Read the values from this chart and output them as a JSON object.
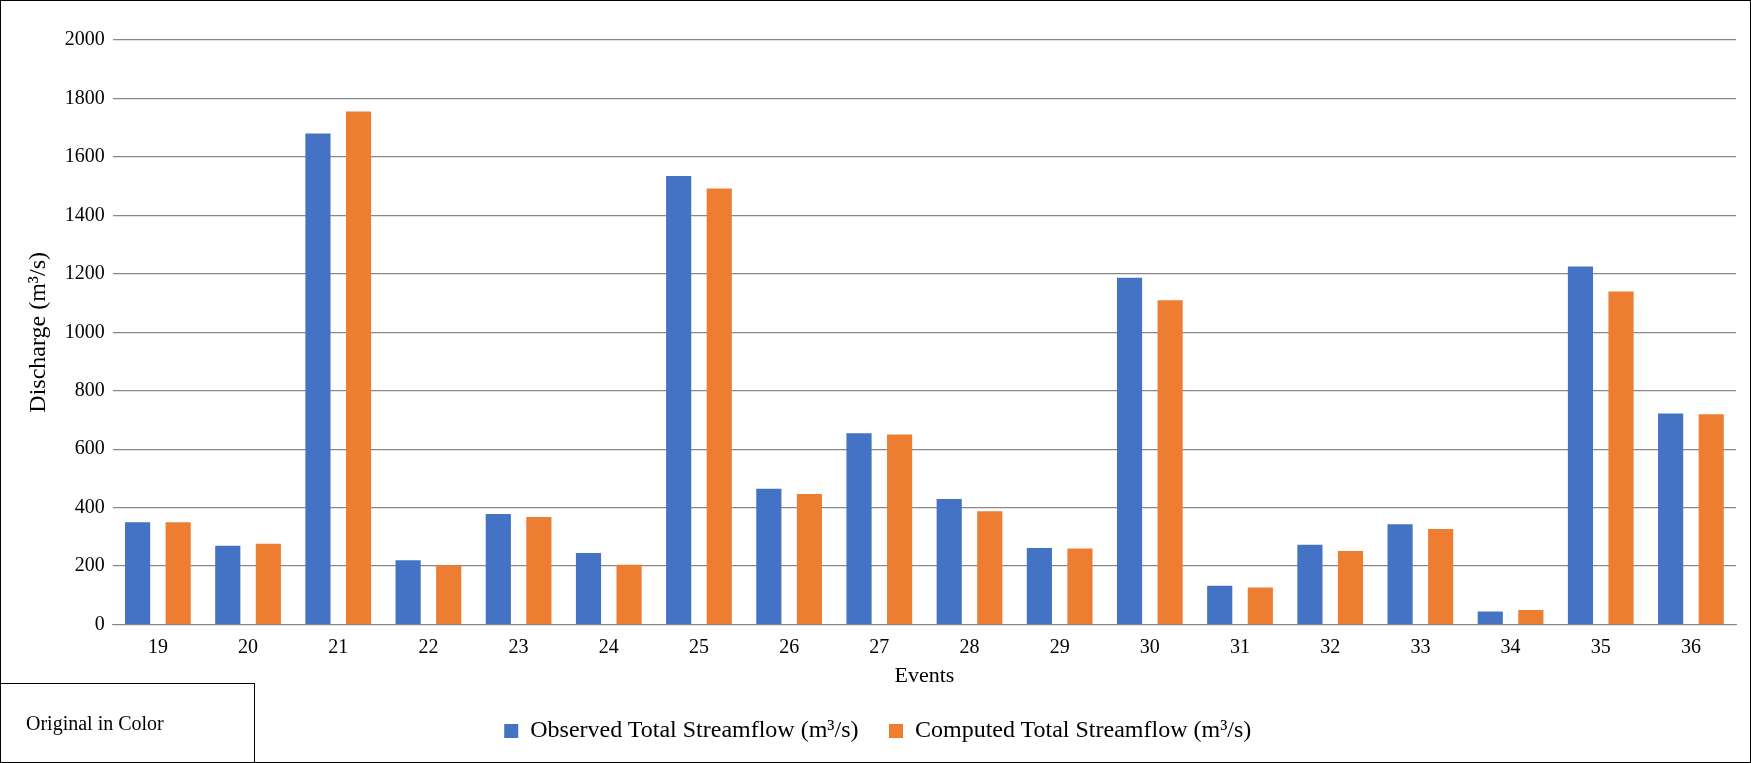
{
  "chart_data": {
    "type": "bar",
    "xlabel": "Events",
    "ylabel": "Discharge (m³/s)",
    "categories": [
      "19",
      "20",
      "21",
      "22",
      "23",
      "24",
      "25",
      "26",
      "27",
      "28",
      "29",
      "30",
      "31",
      "32",
      "33",
      "34",
      "35",
      "36"
    ],
    "series": [
      {
        "name": "Observed Total Streamflow (m³/s)",
        "color": "#4472c4",
        "values": [
          350,
          270,
          1680,
          220,
          378,
          245,
          1535,
          465,
          655,
          430,
          262,
          1187,
          133,
          273,
          343,
          45,
          1225,
          722
        ]
      },
      {
        "name": "Computed Total Streamflow (m³/s)",
        "color": "#ed7d31",
        "values": [
          350,
          277,
          1755,
          203,
          368,
          205,
          1492,
          447,
          650,
          388,
          260,
          1110,
          127,
          252,
          327,
          50,
          1140,
          720
        ]
      }
    ],
    "ylim": [
      0,
      2000
    ],
    "yticks": [
      0,
      200,
      400,
      600,
      800,
      1000,
      1200,
      1400,
      1600,
      1800,
      2000
    ],
    "grid": "y",
    "legend": "bottom",
    "annotations": [
      "Original in Color"
    ]
  }
}
